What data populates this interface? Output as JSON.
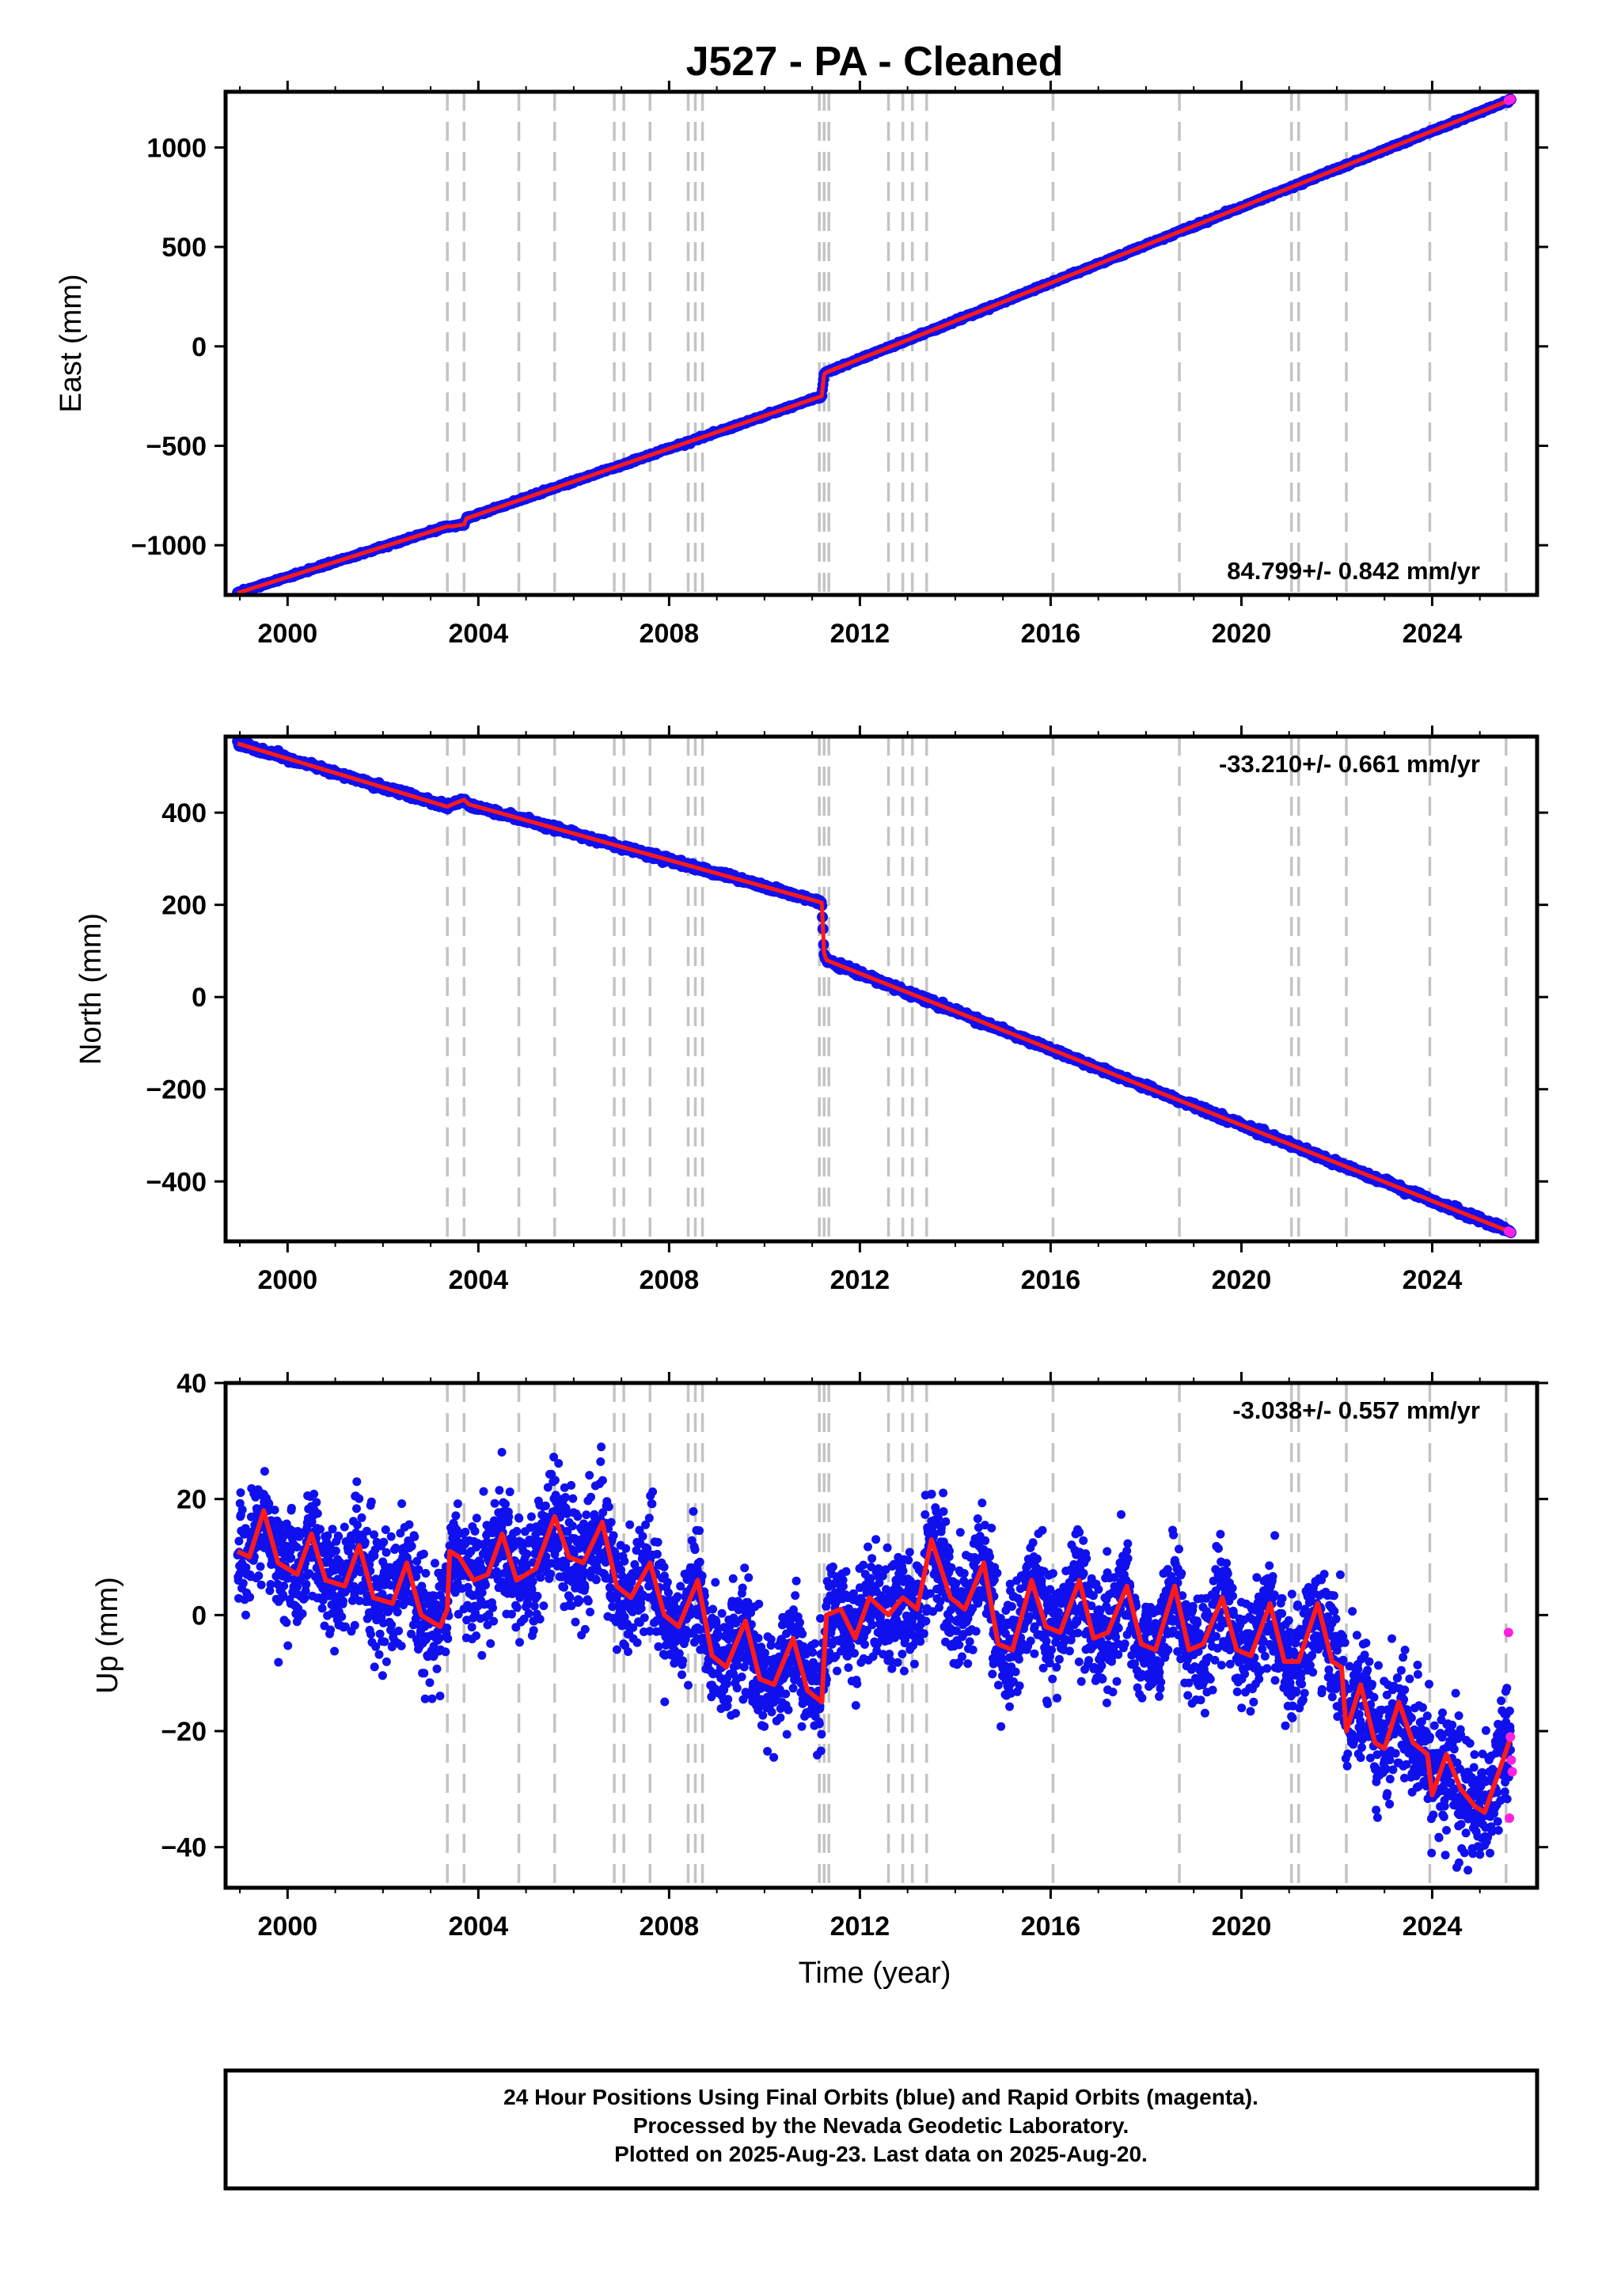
{
  "chart_data": {
    "title": "J527  - PA - Cleaned",
    "type": "scatter",
    "xlabel": "Time (year)",
    "xlim": [
      1998.7,
      2026.2
    ],
    "xticks": [
      2000,
      2004,
      2008,
      2012,
      2016,
      2020,
      2024
    ],
    "steps": [
      2003.35,
      2003.7,
      2004.85,
      2005.6,
      2006.85,
      2007.05,
      2007.6,
      2008.4,
      2008.55,
      2008.7,
      2011.15,
      2011.25,
      2011.35,
      2012.6,
      2012.9,
      2013.1,
      2013.4,
      2016.05,
      2018.7,
      2021.05,
      2021.2,
      2022.2,
      2023.95,
      2025.55
    ],
    "legend": {
      "final": "Final Orbits (blue)",
      "rapid": "Rapid Orbits (magenta)",
      "model": "red"
    },
    "colors": {
      "final": "#1010ee",
      "rapid": "#ff22dd",
      "model": "#ff1a1a",
      "steps": "#c4c4c4"
    },
    "panels": [
      {
        "component": "east",
        "ylabel": "East (mm)",
        "ylim": [
          -1250,
          1280
        ],
        "yticks": [
          -1000,
          -500,
          0,
          500,
          1000
        ],
        "yticklabels": [
          "−1000",
          "−500",
          "0",
          "500",
          "1000"
        ],
        "rate_text": "84.799+/- 0.842 mm/yr",
        "rate_placement": "bottom-right",
        "series": [
          {
            "name": "model",
            "x": [
              1998.95,
              2003.35,
              2003.45,
              2003.7,
              2003.75,
              2011.2,
              2011.25,
              2011.3,
              2025.65
            ],
            "y": [
              -1240,
              -905,
              -905,
              -895,
              -865,
              -250,
              -140,
              -130,
              1240
            ]
          }
        ],
        "rapid_points": {
          "x": [
            2025.6,
            2025.65
          ],
          "y": [
            1237,
            1242
          ]
        }
      },
      {
        "component": "north",
        "ylabel": "North (mm)",
        "ylim": [
          -530,
          565
        ],
        "yticks": [
          -400,
          -200,
          0,
          200,
          400
        ],
        "yticklabels": [
          "−400",
          "−200",
          "0",
          "200",
          "400"
        ],
        "rate_text": "-33.210+/- 0.661 mm/yr",
        "rate_placement": "top-right",
        "series": [
          {
            "name": "model",
            "x": [
              1998.95,
              2003.35,
              2003.5,
              2003.7,
              2003.8,
              2011.2,
              2011.25,
              2011.3,
              2025.65
            ],
            "y": [
              550,
              413,
              420,
              428,
              418,
              205,
              95,
              80,
              -510
            ]
          }
        ],
        "rapid_points": {
          "x": [
            2025.6,
            2025.65
          ],
          "y": [
            -508,
            -511
          ]
        }
      },
      {
        "component": "up",
        "ylabel": "Up (mm)",
        "ylim": [
          -47,
          40
        ],
        "yticks": [
          -40,
          -20,
          0,
          20,
          40
        ],
        "yticklabels": [
          "−40",
          "−20",
          "0",
          "20",
          "40"
        ],
        "rate_text": "-3.038+/- 0.557 mm/yr",
        "rate_placement": "top-right",
        "noise_mm": 5,
        "series": [
          {
            "name": "model",
            "x": [
              1998.95,
              1999.2,
              1999.5,
              1999.8,
              2000.2,
              2000.5,
              2000.8,
              2001.2,
              2001.5,
              2001.8,
              2002.2,
              2002.5,
              2002.8,
              2003.2,
              2003.35,
              2003.4,
              2003.6,
              2003.9,
              2004.2,
              2004.5,
              2004.8,
              2005.2,
              2005.6,
              2005.9,
              2006.2,
              2006.6,
              2006.9,
              2007.2,
              2007.6,
              2007.9,
              2008.2,
              2008.6,
              2008.9,
              2009.2,
              2009.6,
              2009.9,
              2010.2,
              2010.6,
              2010.9,
              2011.2,
              2011.3,
              2011.6,
              2011.9,
              2012.2,
              2012.6,
              2012.9,
              2013.2,
              2013.5,
              2013.9,
              2014.2,
              2014.6,
              2014.9,
              2015.2,
              2015.6,
              2015.9,
              2016.2,
              2016.6,
              2016.9,
              2017.2,
              2017.6,
              2017.9,
              2018.2,
              2018.6,
              2018.9,
              2019.2,
              2019.6,
              2019.9,
              2020.2,
              2020.6,
              2020.9,
              2021.2,
              2021.6,
              2021.9,
              2022.1,
              2022.2,
              2022.5,
              2022.8,
              2023.0,
              2023.3,
              2023.6,
              2023.9,
              2024.0,
              2024.3,
              2024.6,
              2024.9,
              2025.1,
              2025.4,
              2025.65
            ],
            "y": [
              11,
              10,
              18,
              9,
              7,
              14,
              6,
              5,
              12,
              3,
              2,
              9,
              0,
              -2,
              1,
              11,
              10,
              6,
              7,
              14,
              6,
              8,
              17,
              10,
              9,
              16,
              5,
              3,
              9,
              0,
              -2,
              6,
              -7,
              -9,
              -1,
              -11,
              -12,
              -4,
              -13,
              -15,
              0,
              1,
              -4,
              3,
              0,
              3,
              1,
              13,
              3,
              1,
              9,
              -5,
              -6,
              6,
              -2,
              -3,
              6,
              -4,
              -3,
              5,
              -5,
              -6,
              5,
              -6,
              -5,
              3,
              -6,
              -7,
              2,
              -8,
              -8,
              2,
              -8,
              -9,
              -20,
              -12,
              -22,
              -23,
              -15,
              -22,
              -24,
              -31,
              -24,
              -30,
              -33,
              -34,
              -27,
              -21
            ]
          }
        ],
        "rapid_points": {
          "x": [
            2025.6,
            2025.62,
            2025.64,
            2025.66,
            2025.68
          ],
          "y": [
            -3,
            -35,
            -21,
            -25,
            -27
          ]
        }
      }
    ]
  },
  "footer": {
    "line1": "24 Hour Positions Using Final Orbits (blue) and Rapid Orbits (magenta).",
    "line2": "Processed by the Nevada Geodetic Laboratory.",
    "line3": "Plotted on 2025-Aug-23. Last data on 2025-Aug-20."
  }
}
